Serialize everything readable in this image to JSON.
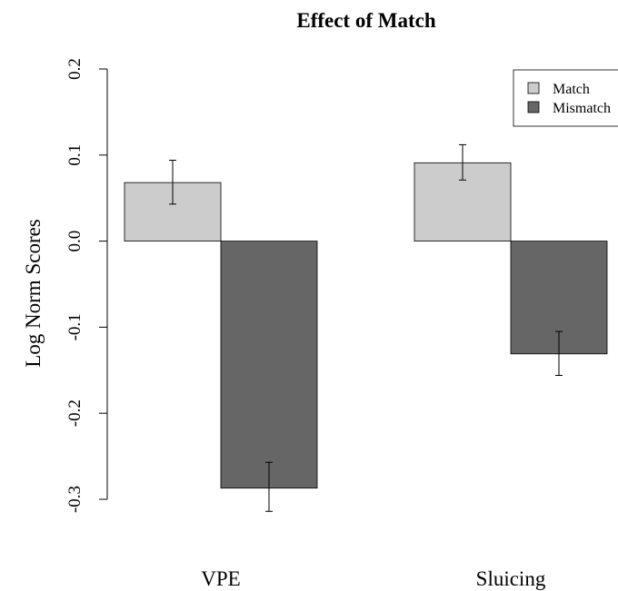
{
  "chart_data": {
    "type": "bar",
    "title": "Effect of Match",
    "ylabel": "Log Norm Scores",
    "xlabel": "",
    "categories": [
      "VPE",
      "Sluicing"
    ],
    "series": [
      {
        "name": "Match",
        "color": "#cccccc",
        "values": [
          0.068,
          0.091
        ],
        "error_low": [
          0.043,
          0.071
        ],
        "error_high": [
          0.094,
          0.112
        ]
      },
      {
        "name": "Mismatch",
        "color": "#666666",
        "values": [
          -0.287,
          -0.131
        ],
        "error_low": [
          -0.314,
          -0.156
        ],
        "error_high": [
          -0.257,
          -0.105
        ]
      }
    ],
    "ylim": [
      -0.3,
      0.2
    ],
    "yticks": [
      -0.3,
      -0.2,
      -0.1,
      0.0,
      0.1,
      0.2
    ],
    "ytick_labels": [
      "-0.3",
      "-0.2",
      "-0.1",
      "0.0",
      "0.1",
      "0.2"
    ],
    "error_bars": true,
    "grid": false,
    "legend_position": "top-right"
  }
}
